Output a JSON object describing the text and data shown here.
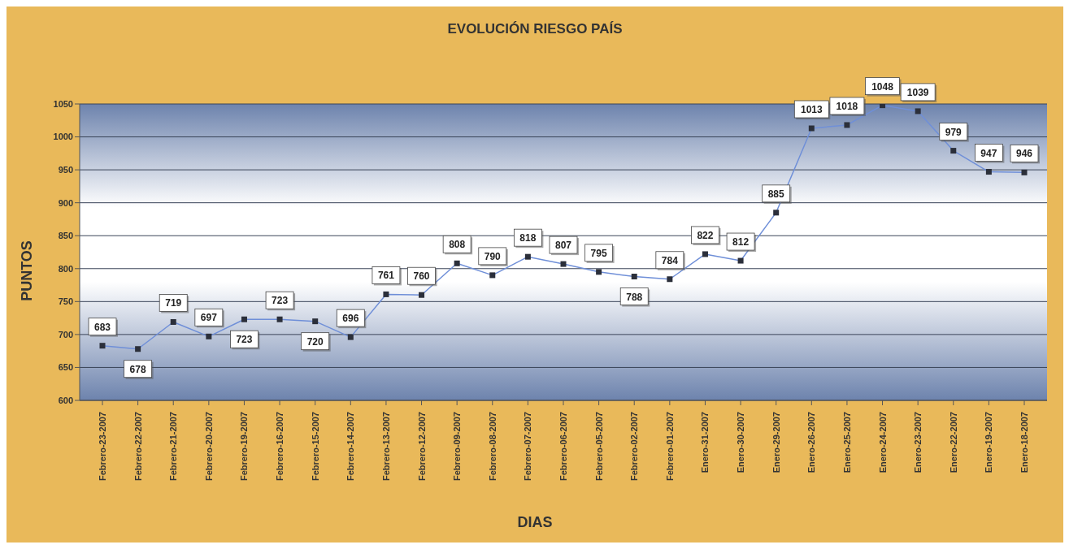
{
  "chart_data": {
    "type": "line",
    "title": "EVOLUCIÓN RIESGO PAÍS",
    "xlabel": "DIAS",
    "ylabel": "PUNTOS",
    "categories": [
      "Febrero-23-2007",
      "Febrero-22-2007",
      "Febrero-21-2007",
      "Febrero-20-2007",
      "Febrero-19-2007",
      "Febrero-16-2007",
      "Febrero-15-2007",
      "Febrero-14-2007",
      "Febrero-13-2007",
      "Febrero-12-2007",
      "Febrero-09-2007",
      "Febrero-08-2007",
      "Febrero-07-2007",
      "Febrero-06-2007",
      "Febrero-05-2007",
      "Febrero-02-2007",
      "Febrero-01-2007",
      "Enero-31-2007",
      "Enero-30-2007",
      "Enero-29-2007",
      "Enero-26-2007",
      "Enero-25-2007",
      "Enero-24-2007",
      "Enero-23-2007",
      "Enero-22-2007",
      "Enero-19-2007",
      "Enero-18-2007"
    ],
    "series": [
      {
        "color": "#6f8fd8",
        "values": [
          683,
          678,
          719,
          697,
          723,
          723,
          720,
          696,
          761,
          760,
          808,
          790,
          818,
          807,
          795,
          788,
          784,
          822,
          812,
          885,
          1013,
          1018,
          1048,
          1039,
          979,
          947,
          946
        ]
      }
    ],
    "ylim": [
      600,
      1050
    ],
    "yticks": [
      600,
      650,
      700,
      750,
      800,
      850,
      900,
      950,
      1000,
      1050
    ],
    "grid": "y",
    "marker": "square",
    "line_style": "solid",
    "data_labels": true,
    "legend": false
  }
}
